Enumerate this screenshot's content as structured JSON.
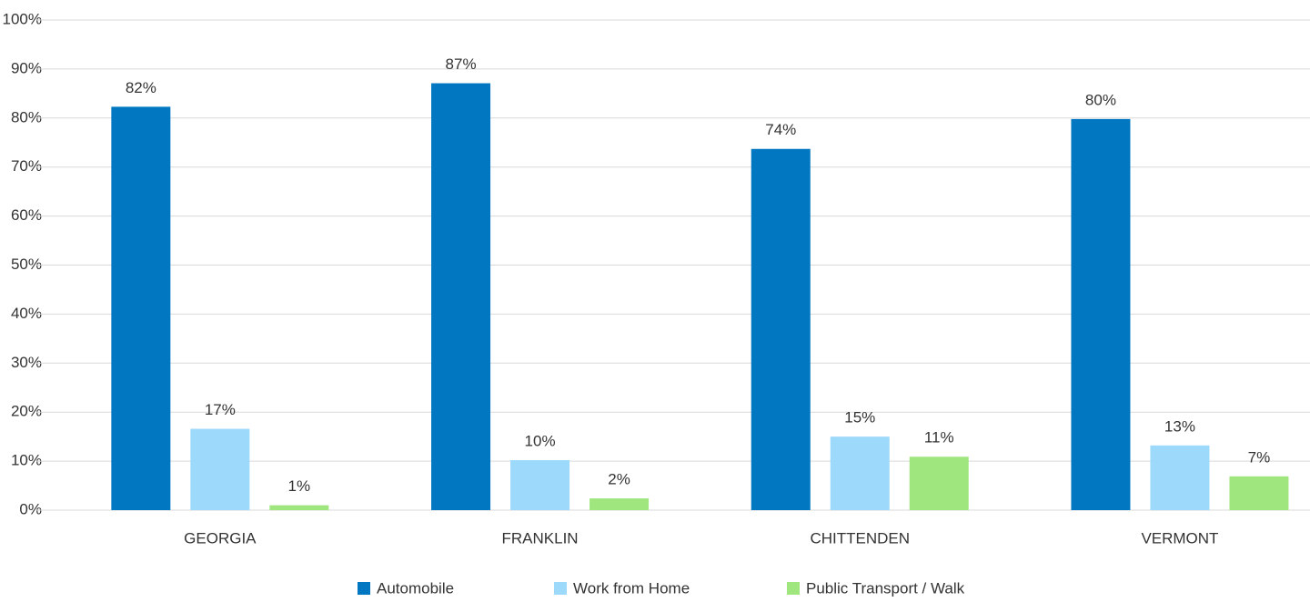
{
  "chart_data": {
    "type": "bar",
    "categories": [
      "GEORGIA",
      "FRANKLIN",
      "CHITTENDEN",
      "VERMONT"
    ],
    "series": [
      {
        "name": "Automobile",
        "color": "#0077c0",
        "values": [
          82.3,
          87.1,
          73.7,
          79.8
        ],
        "value_labels": [
          "82%",
          "87%",
          "74%",
          "80%"
        ]
      },
      {
        "name": "Work from Home",
        "color": "#9dd9fb",
        "values": [
          16.6,
          10.2,
          15.0,
          13.2
        ],
        "value_labels": [
          "17%",
          "10%",
          "15%",
          "13%"
        ]
      },
      {
        "name": "Public Transport / Walk",
        "color": "#a0e67f",
        "values": [
          1.0,
          2.4,
          10.9,
          6.9
        ],
        "value_labels": [
          "1%",
          "2%",
          "11%",
          "7%"
        ]
      }
    ],
    "ylim": [
      0,
      100
    ],
    "yticks": [
      {
        "value": 0,
        "label": "0%"
      },
      {
        "value": 10,
        "label": "10%"
      },
      {
        "value": 20,
        "label": "20%"
      },
      {
        "value": 30,
        "label": "30%"
      },
      {
        "value": 40,
        "label": "40%"
      },
      {
        "value": 50,
        "label": "50%"
      },
      {
        "value": 60,
        "label": "60%"
      },
      {
        "value": 70,
        "label": "70%"
      },
      {
        "value": 80,
        "label": "80%"
      },
      {
        "value": 90,
        "label": "90%"
      },
      {
        "value": 100,
        "label": "100%"
      }
    ],
    "grid": true,
    "legend": "bottom"
  }
}
